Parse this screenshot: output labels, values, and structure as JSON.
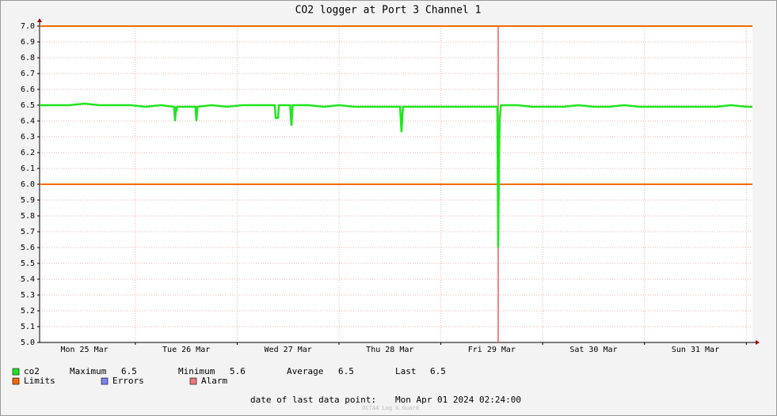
{
  "chart_data": {
    "type": "line",
    "title": "CO2 logger at Port 3 Channel 1",
    "xlim": [
      0.06,
      7.06
    ],
    "xticks": [
      {
        "value": 0.5,
        "label": "Mon 25 Mar"
      },
      {
        "value": 1.5,
        "label": "Tue 26 Mar"
      },
      {
        "value": 2.5,
        "label": "Wed 27 Mar"
      },
      {
        "value": 3.5,
        "label": "Thu 28 Mar"
      },
      {
        "value": 4.5,
        "label": "Fri 29 Mar"
      },
      {
        "value": 5.5,
        "label": "Sat 30 Mar"
      },
      {
        "value": 6.5,
        "label": "Sun 31 Mar"
      }
    ],
    "xgrid": [
      1,
      2,
      3,
      4,
      5,
      6,
      7
    ],
    "ylim": [
      5.0,
      7.0
    ],
    "yticks": [
      {
        "value": 5.0,
        "label": "5.0"
      },
      5.1,
      5.2,
      5.3,
      5.4,
      5.5,
      5.6,
      5.7,
      5.8,
      5.9,
      {
        "value": 6.0,
        "label": "6.0"
      },
      6.1,
      6.2,
      6.3,
      6.4,
      6.5,
      6.6,
      6.7,
      6.8,
      6.9,
      {
        "value": 7.0,
        "label": "7.0"
      }
    ],
    "grid": true,
    "limits": [
      6.0,
      7.0
    ],
    "limit_color": "#f26a00",
    "alarm_x": 4.563,
    "alarm_color": "#e86060",
    "series": [
      {
        "name": "co2",
        "color": "#1ee61e",
        "x": [
          0.06,
          0.2,
          0.35,
          0.5,
          0.65,
          0.8,
          0.95,
          1.1,
          1.25,
          1.38,
          1.39,
          1.4,
          1.405,
          1.41,
          1.5,
          1.59,
          1.6,
          1.61,
          1.75,
          1.9,
          2.05,
          2.2,
          2.37,
          2.378,
          2.401,
          2.41,
          2.52,
          2.533,
          2.545,
          2.7,
          2.85,
          3.0,
          3.15,
          3.3,
          3.45,
          3.6,
          3.614,
          3.628,
          3.75,
          3.9,
          4.05,
          4.2,
          4.35,
          4.5,
          4.555,
          4.563,
          4.571,
          4.578,
          4.59,
          4.75,
          4.9,
          5.05,
          5.2,
          5.35,
          5.5,
          5.65,
          5.8,
          5.95,
          6.1,
          6.25,
          6.4,
          6.55,
          6.7,
          6.85,
          7.0,
          7.06
        ],
        "values": [
          6.5,
          6.5,
          6.5,
          6.51,
          6.5,
          6.5,
          6.5,
          6.49,
          6.5,
          6.49,
          6.4,
          6.49,
          6.46,
          6.49,
          6.49,
          6.49,
          6.4,
          6.49,
          6.5,
          6.49,
          6.5,
          6.5,
          6.5,
          6.42,
          6.42,
          6.5,
          6.5,
          6.37,
          6.5,
          6.5,
          6.49,
          6.5,
          6.49,
          6.49,
          6.49,
          6.49,
          6.33,
          6.49,
          6.49,
          6.49,
          6.49,
          6.49,
          6.49,
          6.49,
          6.49,
          5.6,
          6.14,
          6.41,
          6.5,
          6.5,
          6.49,
          6.49,
          6.49,
          6.5,
          6.49,
          6.49,
          6.5,
          6.49,
          6.49,
          6.49,
          6.49,
          6.49,
          6.49,
          6.5,
          6.49,
          6.49
        ]
      }
    ],
    "stats": [
      {
        "label": "Maximum",
        "value": 6.5
      },
      {
        "label": "Minimum",
        "value": 5.6
      },
      {
        "label": "Average",
        "value": 6.5
      },
      {
        "label": "Last",
        "value": 6.5
      }
    ],
    "legend_extra": [
      {
        "name": "Limits",
        "color": "#f26a00"
      },
      {
        "name": "Errors",
        "color": "#7c84f0"
      },
      {
        "name": "Alarm",
        "color": "#f07878"
      }
    ],
    "footer": {
      "label": "date of last data point:",
      "value": "Mon Apr 01 2024 02:24:00"
    },
    "watermark": "OCTA4 Log & Guard"
  }
}
